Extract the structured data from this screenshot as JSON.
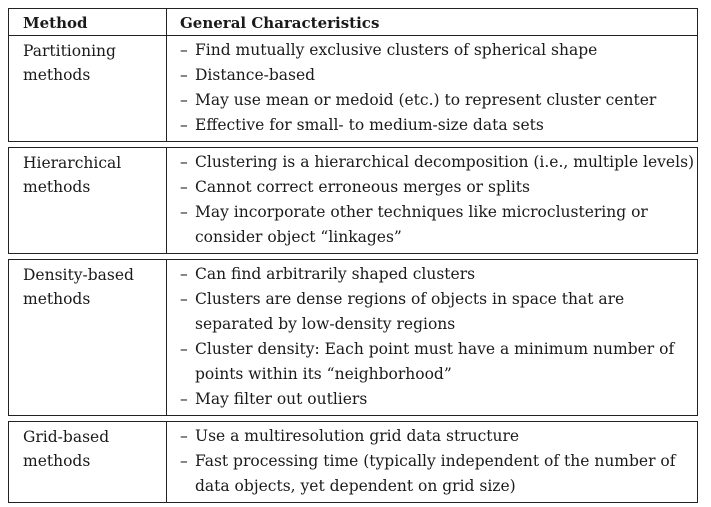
{
  "header": {
    "method": "Method",
    "characteristics": "General Characteristics"
  },
  "groups": [
    {
      "method": "Partitioning\nmethods",
      "items": [
        "Find mutually exclusive clusters of spherical shape",
        "Distance-based",
        "May use mean or medoid (etc.) to represent cluster center",
        "Effective for small- to medium-size data sets"
      ]
    },
    {
      "method": "Hierarchical\nmethods",
      "items": [
        "Clustering is a hierarchical decomposition (i.e., multiple levels)",
        "Cannot correct erroneous merges or splits",
        "May incorporate other techniques like microclustering or\nconsider object “linkages”"
      ]
    },
    {
      "method": "Density-based\nmethods",
      "items": [
        "Can find arbitrarily shaped clusters",
        "Clusters are dense regions of objects in space that are\nseparated by low-density regions",
        "Cluster density: Each point must have a minimum number of\npoints within its “neighborhood”",
        "May filter out outliers"
      ]
    },
    {
      "method": "Grid-based\nmethods",
      "items": [
        "Use a multiresolution grid data structure",
        "Fast processing time (typically independent of the number of\ndata objects, yet dependent on grid size)"
      ]
    }
  ]
}
